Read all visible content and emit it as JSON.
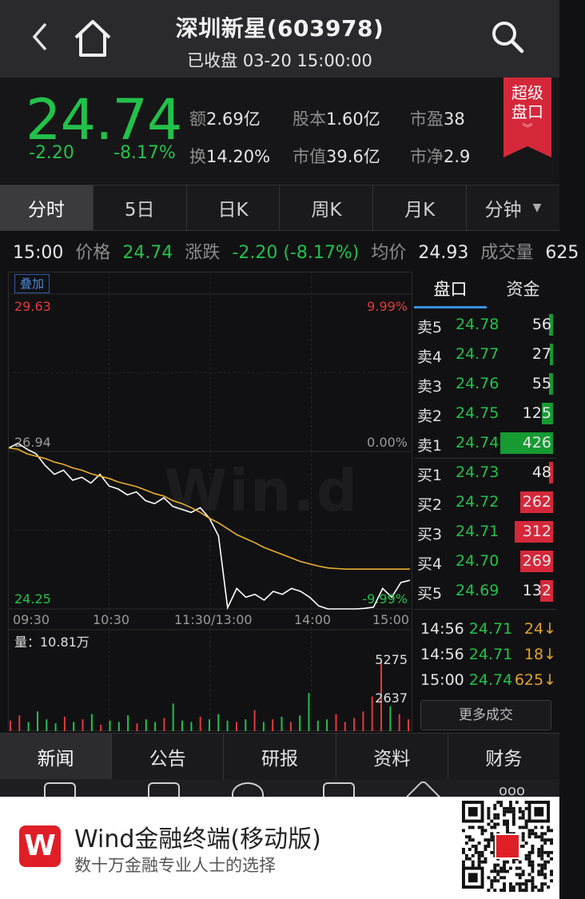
{
  "header": {
    "title": "深圳新星(603978)",
    "subtitle": "已收盘 03-20 15:00:00"
  },
  "quote": {
    "price": "24.74",
    "change": "-2.20",
    "change_pct": "-8.17%",
    "stats": [
      {
        "label": "额",
        "value": "2.69亿"
      },
      {
        "label": "股本",
        "value": "1.60亿"
      },
      {
        "label": "市盈",
        "value": "38"
      },
      {
        "label": "换",
        "value": "14.20%"
      },
      {
        "label": "市值",
        "value": "39.6亿"
      },
      {
        "label": "市净",
        "value": "2.9"
      }
    ],
    "badge": "超级盘口"
  },
  "tabs": [
    "分时",
    "5日",
    "日K",
    "周K",
    "月K",
    "分钟"
  ],
  "info": {
    "time": "15:00",
    "price_label": "价格",
    "price": "24.74",
    "change_label": "涨跌",
    "change": "-2.20 (-8.17%)",
    "avg_label": "均价",
    "avg": "24.93",
    "vol_label": "成交量",
    "vol": "625"
  },
  "chart": {
    "overlay_button": "叠加",
    "price_high": "29.63",
    "price_high_pct": "9.99%",
    "price_mid": "26.94",
    "price_mid_pct": "0.00%",
    "price_low": "24.25",
    "price_low_pct": "-9.99%",
    "time_labels": [
      "09:30",
      "10:30",
      "11:30/13:00",
      "14:00",
      "15:00"
    ],
    "volume_label": "量：10.81万",
    "vol_high": "5275",
    "vol_mid": "2637",
    "watermark": "Win.d"
  },
  "chart_data": {
    "type": "line",
    "title": "",
    "xlabel": "",
    "ylabel": "",
    "ylim": [
      24.25,
      29.63
    ],
    "series": [
      {
        "values": [
          27.0,
          27.08,
          26.98,
          26.9,
          26.7,
          26.55,
          26.62,
          26.45,
          26.5,
          26.4,
          26.55,
          26.35,
          26.3,
          26.2,
          26.25,
          26.1,
          26.05,
          26.15,
          26.0,
          25.95,
          25.9,
          25.98,
          25.8,
          25.5,
          24.27,
          24.6,
          24.45,
          24.5,
          24.4,
          24.55,
          24.5,
          24.6,
          24.55,
          24.45,
          24.3,
          24.25,
          24.25,
          24.25,
          24.25,
          24.26,
          24.28,
          24.6,
          24.45,
          24.7,
          24.74
        ]
      },
      {
        "values": [
          27.0,
          26.98,
          26.9,
          26.86,
          26.82,
          26.76,
          26.72,
          26.66,
          26.62,
          26.56,
          26.52,
          26.48,
          26.42,
          26.38,
          26.34,
          26.28,
          26.22,
          26.18,
          26.1,
          26.05,
          25.98,
          25.9,
          25.8,
          25.72,
          25.62,
          25.52,
          25.45,
          25.38,
          25.3,
          25.24,
          25.18,
          25.12,
          25.06,
          25.02,
          24.98,
          24.95,
          24.94,
          24.93,
          24.93,
          24.93,
          24.93,
          24.93,
          24.93,
          24.93,
          24.93
        ]
      }
    ],
    "volume": [
      800,
      1200,
      700,
      1500,
      900,
      600,
      1100,
      700,
      900,
      1300,
      500,
      800,
      700,
      1200,
      600,
      900,
      700,
      1000,
      2100,
      800,
      700,
      1100,
      900,
      1300,
      800,
      700,
      900,
      1600,
      700,
      900,
      1100,
      700,
      1200,
      2900,
      800,
      900,
      1300,
      700,
      1000,
      1500,
      2637,
      5275,
      1900,
      1300,
      900
    ],
    "colors": {
      "price_line": "#ffffff",
      "avg_line": "#e8b030",
      "vol_up": "#e23a3a",
      "vol_down": "#22c14a"
    }
  },
  "orderbook": {
    "tabs": [
      "盘口",
      "资金"
    ],
    "sells": [
      {
        "label": "卖5",
        "price": "24.78",
        "qty": "56",
        "fill": 0.03
      },
      {
        "label": "卖4",
        "price": "24.77",
        "qty": "27",
        "fill": 0.02
      },
      {
        "label": "卖3",
        "price": "24.76",
        "qty": "55",
        "fill": 0.03
      },
      {
        "label": "卖2",
        "price": "24.75",
        "qty": "125",
        "fill": 0.08
      },
      {
        "label": "卖1",
        "price": "24.74",
        "qty": "426",
        "fill": 0.37
      }
    ],
    "buys": [
      {
        "label": "买1",
        "price": "24.73",
        "qty": "48",
        "fill": 0.03
      },
      {
        "label": "买2",
        "price": "24.72",
        "qty": "262",
        "fill": 0.23
      },
      {
        "label": "买3",
        "price": "24.71",
        "qty": "312",
        "fill": 0.27
      },
      {
        "label": "买4",
        "price": "24.70",
        "qty": "269",
        "fill": 0.23
      },
      {
        "label": "买5",
        "price": "24.69",
        "qty": "132",
        "fill": 0.09
      }
    ],
    "trades": [
      {
        "time": "14:56",
        "price": "24.71",
        "vol": "24↓"
      },
      {
        "time": "14:56",
        "price": "24.71",
        "vol": "18↓"
      },
      {
        "time": "15:00",
        "price": "24.74",
        "vol": "625↓"
      }
    ],
    "more_button": "更多成交"
  },
  "news_tabs": [
    "新闻",
    "公告",
    "研报",
    "资料",
    "财务"
  ],
  "banner": {
    "logo": "W",
    "title": "Wind金融终端(移动版)",
    "subtitle": "数十万金融专业人士的选择"
  }
}
